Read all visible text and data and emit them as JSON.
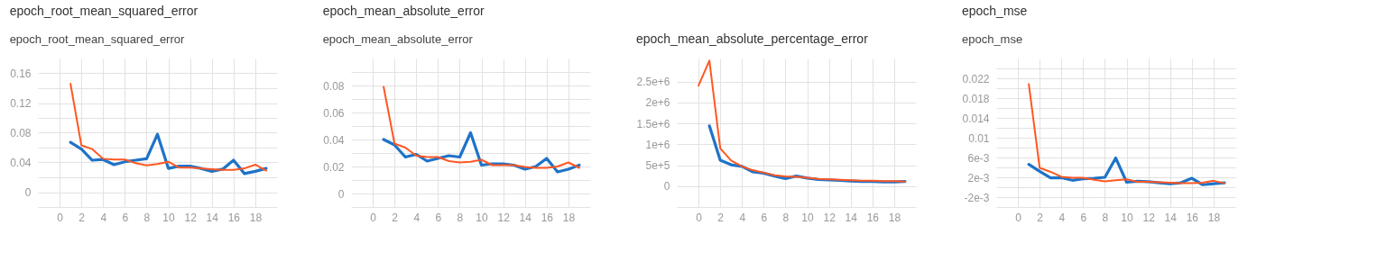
{
  "chart_data": [
    {
      "type": "line",
      "title": "epoch_root_mean_squared_error",
      "subtitle": "epoch_root_mean_squared_error",
      "x": [
        1,
        2,
        3,
        4,
        5,
        6,
        7,
        8,
        9,
        10,
        11,
        12,
        13,
        14,
        15,
        16,
        17,
        18,
        19
      ],
      "xlim": [
        -2,
        20
      ],
      "xticks": [
        0,
        2,
        4,
        6,
        8,
        10,
        12,
        14,
        16,
        18
      ],
      "ylim": [
        -0.02,
        0.18
      ],
      "yticks": [
        {
          "value": -0.02,
          "label": null
        },
        0,
        {
          "value": 0.02,
          "label": null
        },
        0.04,
        {
          "value": 0.06,
          "label": null
        },
        0.08,
        {
          "value": 0.1,
          "label": null
        },
        0.12,
        {
          "value": 0.14,
          "label": null
        },
        0.16
      ],
      "grid": true,
      "marker": "none",
      "line_style": "solid",
      "series": [
        {
          "color": "#1e73c8",
          "values": [
            0.067,
            0.058,
            0.043,
            0.044,
            0.037,
            0.041,
            0.043,
            0.045,
            0.078,
            0.032,
            0.035,
            0.035,
            0.032,
            0.028,
            0.031,
            0.043,
            0.025,
            0.028,
            0.032
          ]
        },
        {
          "color": "#ff5722",
          "values": [
            0.146,
            0.063,
            0.058,
            0.045,
            0.044,
            0.044,
            0.039,
            0.036,
            0.038,
            0.041,
            0.033,
            0.033,
            0.032,
            0.031,
            0.03,
            0.03,
            0.032,
            0.037,
            0.029
          ]
        }
      ]
    },
    {
      "type": "line",
      "title": "epoch_mean_absolute_error",
      "subtitle": "epoch_mean_absolute_error",
      "x": [
        1,
        2,
        3,
        4,
        5,
        6,
        7,
        8,
        9,
        10,
        11,
        12,
        13,
        14,
        15,
        16,
        17,
        18,
        19
      ],
      "xlim": [
        -2,
        20
      ],
      "xticks": [
        0,
        2,
        4,
        6,
        8,
        10,
        12,
        14,
        16,
        18
      ],
      "ylim": [
        -0.01,
        0.1
      ],
      "yticks": [
        {
          "value": -0.01,
          "label": null
        },
        0,
        {
          "value": 0.01,
          "label": null
        },
        0.02,
        {
          "value": 0.03,
          "label": null
        },
        0.04,
        {
          "value": 0.05,
          "label": null
        },
        0.06,
        {
          "value": 0.07,
          "label": null
        },
        0.08,
        {
          "value": 0.09,
          "label": null
        }
      ],
      "grid": true,
      "marker": "none",
      "line_style": "solid",
      "series": [
        {
          "color": "#1e73c8",
          "values": [
            0.04,
            0.036,
            0.027,
            0.029,
            0.024,
            0.026,
            0.028,
            0.027,
            0.045,
            0.021,
            0.022,
            0.022,
            0.021,
            0.018,
            0.02,
            0.026,
            0.016,
            0.018,
            0.021
          ]
        },
        {
          "color": "#ff5722",
          "values": [
            0.079,
            0.037,
            0.034,
            0.028,
            0.027,
            0.027,
            0.024,
            0.023,
            0.0235,
            0.025,
            0.021,
            0.021,
            0.021,
            0.0196,
            0.019,
            0.019,
            0.02,
            0.023,
            0.019
          ]
        }
      ]
    },
    {
      "type": "line",
      "title": "epoch_mean_absolute_percentage_error",
      "x": [
        0,
        1,
        2,
        3,
        4,
        5,
        6,
        7,
        8,
        9,
        10,
        11,
        12,
        13,
        14,
        15,
        16,
        17,
        18,
        19
      ],
      "xlim": [
        -2,
        20
      ],
      "xticks": [
        0,
        2,
        4,
        6,
        8,
        10,
        12,
        14,
        16,
        18
      ],
      "ylim": [
        -500000,
        3050000
      ],
      "yticks": [
        {
          "value": -500000,
          "label": null
        },
        0,
        {
          "value": 500000,
          "label": "5e+5"
        },
        {
          "value": 1000000,
          "label": "1e+6"
        },
        {
          "value": 1500000,
          "label": "1.5e+6"
        },
        {
          "value": 2000000,
          "label": "2e+6"
        },
        {
          "value": 2500000,
          "label": "2.5e+6"
        }
      ],
      "grid": true,
      "marker": "none",
      "line_style": "solid",
      "series": [
        {
          "color": "#1e73c8",
          "values": [
            null,
            1440000,
            620000,
            510000,
            470000,
            340000,
            310000,
            240000,
            180000,
            240000,
            190000,
            160000,
            150000,
            135000,
            120000,
            110000,
            110000,
            100000,
            100000,
            110000
          ]
        },
        {
          "color": "#ff5722",
          "values": [
            2400000,
            3000000,
            900000,
            610000,
            470000,
            380000,
            320000,
            260000,
            230000,
            220000,
            200000,
            170000,
            160000,
            150000,
            140000,
            130000,
            130000,
            120000,
            120000,
            110000
          ]
        }
      ]
    },
    {
      "type": "line",
      "title": "epoch_mse",
      "subtitle": "epoch_mse",
      "x": [
        1,
        2,
        3,
        4,
        5,
        6,
        7,
        8,
        9,
        10,
        11,
        12,
        13,
        14,
        15,
        16,
        17,
        18,
        19
      ],
      "xlim": [
        -2,
        20
      ],
      "xticks": [
        0,
        2,
        4,
        6,
        8,
        10,
        12,
        14,
        16,
        18
      ],
      "ylim": [
        -0.004,
        0.026
      ],
      "yticks": [
        {
          "value": -0.004,
          "label": null
        },
        {
          "value": -0.002,
          "label": "-2e-3"
        },
        {
          "value": 0,
          "label": null
        },
        {
          "value": 0.002,
          "label": "2e-3"
        },
        {
          "value": 0.004,
          "label": null
        },
        {
          "value": 0.006,
          "label": "6e-3"
        },
        {
          "value": 0.008,
          "label": null
        },
        0.01,
        {
          "value": 0.012,
          "label": null
        },
        0.014,
        {
          "value": 0.016,
          "label": null
        },
        0.018,
        {
          "value": 0.02,
          "label": null
        },
        0.022,
        {
          "value": 0.024,
          "label": null
        }
      ],
      "grid": true,
      "marker": "none",
      "line_style": "solid",
      "series": [
        {
          "color": "#1e73c8",
          "values": [
            0.0046,
            0.0032,
            0.0019,
            0.0019,
            0.0014,
            0.0017,
            0.0018,
            0.002,
            0.0059,
            0.001,
            0.0012,
            0.0011,
            0.0009,
            0.0007,
            0.0009,
            0.0018,
            0.0005,
            0.0007,
            0.0009
          ]
        },
        {
          "color": "#ff5722",
          "values": [
            0.0208,
            0.0039,
            0.0031,
            0.0021,
            0.0019,
            0.0019,
            0.0015,
            0.0012,
            0.0014,
            0.0016,
            0.0011,
            0.0011,
            0.001,
            0.0009,
            0.0008,
            0.0008,
            0.0009,
            0.0013,
            0.0008
          ]
        }
      ]
    }
  ]
}
